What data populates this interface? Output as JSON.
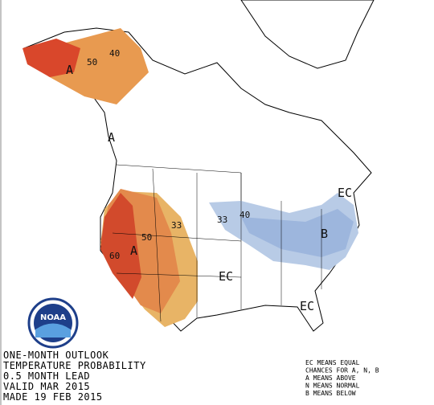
{
  "map_labels": [
    "40",
    "50",
    "A",
    "A",
    "33",
    "50",
    "60",
    "A",
    "33",
    "40",
    "B",
    "EC",
    "EC",
    "EC"
  ],
  "logo": "NOAA",
  "title_block": [
    "ONE-MONTH OUTLOOK",
    "TEMPERATURE PROBABILITY",
    "0.5 MONTH LEAD",
    "VALID MAR 2015",
    "MADE 19 FEB 2015"
  ],
  "legend": [
    "EC MEANS EQUAL",
    "CHANCES FOR A, N, B",
    "A MEANS ABOVE",
    "N MEANS NORMAL",
    "B MEANS BELOW"
  ]
}
